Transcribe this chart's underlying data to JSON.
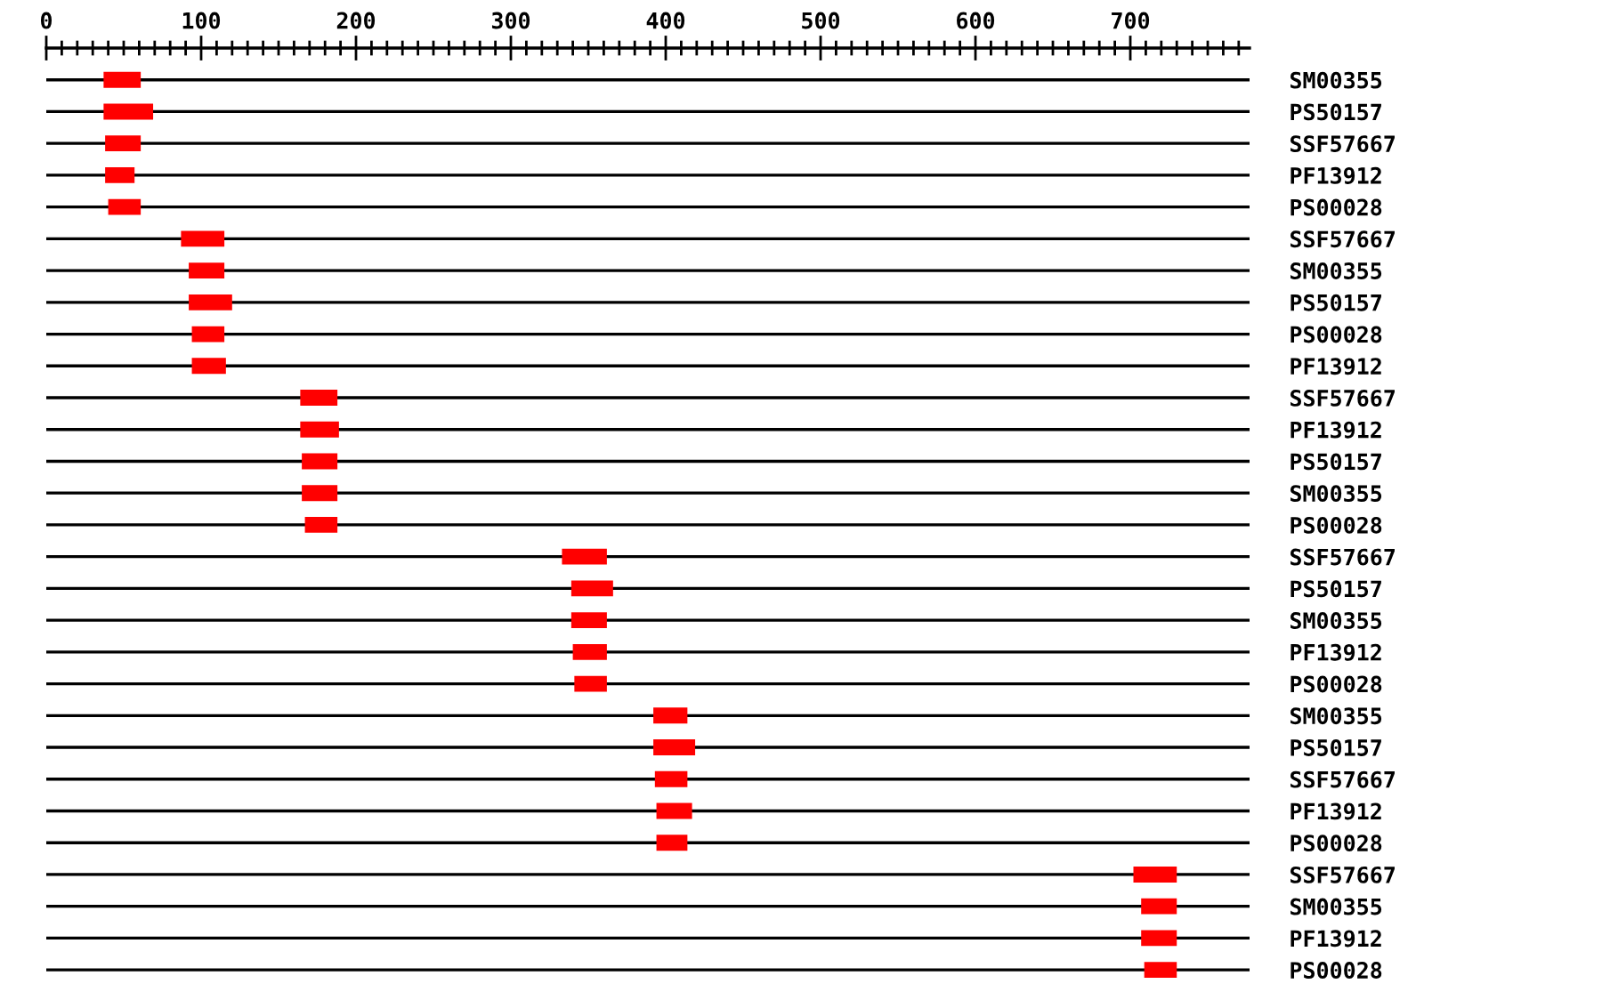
{
  "chart_data": {
    "type": "bar",
    "orientation": "horizontal",
    "color": "#ff0000",
    "grid": "y",
    "categories": [
      "SM00355",
      "PS50157",
      "SSF57667",
      "PF13912",
      "PS00028",
      "SSF57667",
      "SM00355",
      "PS50157",
      "PS00028",
      "PF13912",
      "SSF57667",
      "PF13912",
      "PS50157",
      "SM00355",
      "PS00028",
      "SSF57667",
      "PS50157",
      "SM00355",
      "PF13912",
      "PS00028",
      "SM00355",
      "PS50157",
      "SSF57667",
      "PF13912",
      "PS00028",
      "SSF57667",
      "SM00355",
      "PF13912",
      "PS00028"
    ],
    "base": [
      37,
      37,
      38,
      38,
      40,
      87,
      92,
      92,
      94,
      94,
      164,
      164,
      165,
      165,
      167,
      333,
      339,
      339,
      340,
      341,
      392,
      392,
      393,
      394,
      394,
      702,
      707,
      707,
      709
    ],
    "values": [
      24,
      32,
      23,
      19,
      21,
      28,
      23,
      28,
      21,
      22,
      24,
      25,
      23,
      23,
      21,
      29,
      27,
      23,
      22,
      21,
      22,
      27,
      21,
      23,
      20,
      28,
      23,
      23,
      21
    ],
    "xlim": [
      0,
      777
    ],
    "xticks": [
      0,
      {
        "value": 10,
        "label": null
      },
      {
        "value": 20,
        "label": null
      },
      {
        "value": 30,
        "label": null
      },
      {
        "value": 40,
        "label": null
      },
      {
        "value": 50,
        "label": null
      },
      {
        "value": 60,
        "label": null
      },
      {
        "value": 70,
        "label": null
      },
      {
        "value": 80,
        "label": null
      },
      {
        "value": 90,
        "label": null
      },
      100,
      {
        "value": 110,
        "label": null
      },
      {
        "value": 120,
        "label": null
      },
      {
        "value": 130,
        "label": null
      },
      {
        "value": 140,
        "label": null
      },
      {
        "value": 150,
        "label": null
      },
      {
        "value": 160,
        "label": null
      },
      {
        "value": 170,
        "label": null
      },
      {
        "value": 180,
        "label": null
      },
      {
        "value": 190,
        "label": null
      },
      200,
      {
        "value": 210,
        "label": null
      },
      {
        "value": 220,
        "label": null
      },
      {
        "value": 230,
        "label": null
      },
      {
        "value": 240,
        "label": null
      },
      {
        "value": 250,
        "label": null
      },
      {
        "value": 260,
        "label": null
      },
      {
        "value": 270,
        "label": null
      },
      {
        "value": 280,
        "label": null
      },
      {
        "value": 290,
        "label": null
      },
      300,
      {
        "value": 310,
        "label": null
      },
      {
        "value": 320,
        "label": null
      },
      {
        "value": 330,
        "label": null
      },
      {
        "value": 340,
        "label": null
      },
      {
        "value": 350,
        "label": null
      },
      {
        "value": 360,
        "label": null
      },
      {
        "value": 370,
        "label": null
      },
      {
        "value": 380,
        "label": null
      },
      {
        "value": 390,
        "label": null
      },
      400,
      {
        "value": 410,
        "label": null
      },
      {
        "value": 420,
        "label": null
      },
      {
        "value": 430,
        "label": null
      },
      {
        "value": 440,
        "label": null
      },
      {
        "value": 450,
        "label": null
      },
      {
        "value": 460,
        "label": null
      },
      {
        "value": 470,
        "label": null
      },
      {
        "value": 480,
        "label": null
      },
      {
        "value": 490,
        "label": null
      },
      500,
      {
        "value": 510,
        "label": null
      },
      {
        "value": 520,
        "label": null
      },
      {
        "value": 530,
        "label": null
      },
      {
        "value": 540,
        "label": null
      },
      {
        "value": 550,
        "label": null
      },
      {
        "value": 560,
        "label": null
      },
      {
        "value": 570,
        "label": null
      },
      {
        "value": 580,
        "label": null
      },
      {
        "value": 590,
        "label": null
      },
      600,
      {
        "value": 610,
        "label": null
      },
      {
        "value": 620,
        "label": null
      },
      {
        "value": 630,
        "label": null
      },
      {
        "value": 640,
        "label": null
      },
      {
        "value": 650,
        "label": null
      },
      {
        "value": 660,
        "label": null
      },
      {
        "value": 670,
        "label": null
      },
      {
        "value": 680,
        "label": null
      },
      {
        "value": 690,
        "label": null
      },
      700,
      {
        "value": 710,
        "label": null
      },
      {
        "value": 720,
        "label": null
      },
      {
        "value": 730,
        "label": null
      },
      {
        "value": 740,
        "label": null
      },
      {
        "value": 750,
        "label": null
      },
      {
        "value": 760,
        "label": null
      },
      {
        "value": 770,
        "label": null
      }
    ]
  }
}
